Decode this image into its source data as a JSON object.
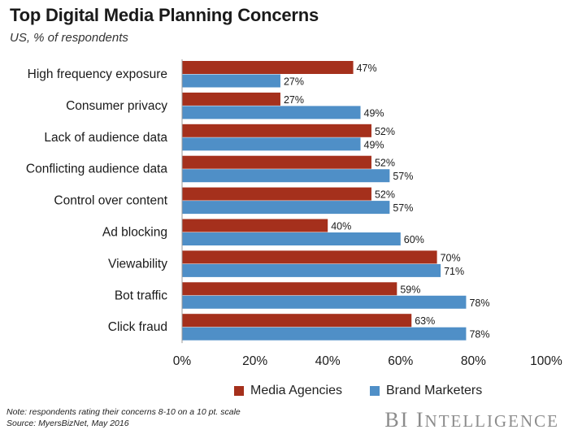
{
  "chart_data": {
    "type": "bar",
    "orientation": "horizontal",
    "title": "Top Digital Media Planning Concerns",
    "subtitle": "US, % of respondents",
    "categories": [
      "High frequency exposure",
      "Consumer privacy",
      "Lack of audience data",
      "Conflicting audience data",
      "Control over content",
      "Ad blocking",
      "Viewability",
      "Bot traffic",
      "Click fraud"
    ],
    "series": [
      {
        "name": "Media Agencies",
        "color": "#a5301c",
        "values": [
          47,
          27,
          52,
          52,
          52,
          40,
          70,
          59,
          63
        ]
      },
      {
        "name": "Brand Marketers",
        "color": "#4f8fc7",
        "values": [
          27,
          49,
          49,
          57,
          57,
          60,
          71,
          78,
          78
        ]
      }
    ],
    "xlim": [
      0,
      100
    ],
    "xticks": [
      "0%",
      "20%",
      "40%",
      "60%",
      "80%",
      "100%"
    ],
    "value_suffix": "%",
    "legend_position": "bottom"
  },
  "footer": {
    "note": "Note: respondents rating their concerns 8-10 on a 10 pt. scale",
    "source": "Source: MyersBizNet, May 2016",
    "brand_first": "BI",
    "brand_second_initial": "I",
    "brand_second_rest": "NTELLIGENCE"
  }
}
